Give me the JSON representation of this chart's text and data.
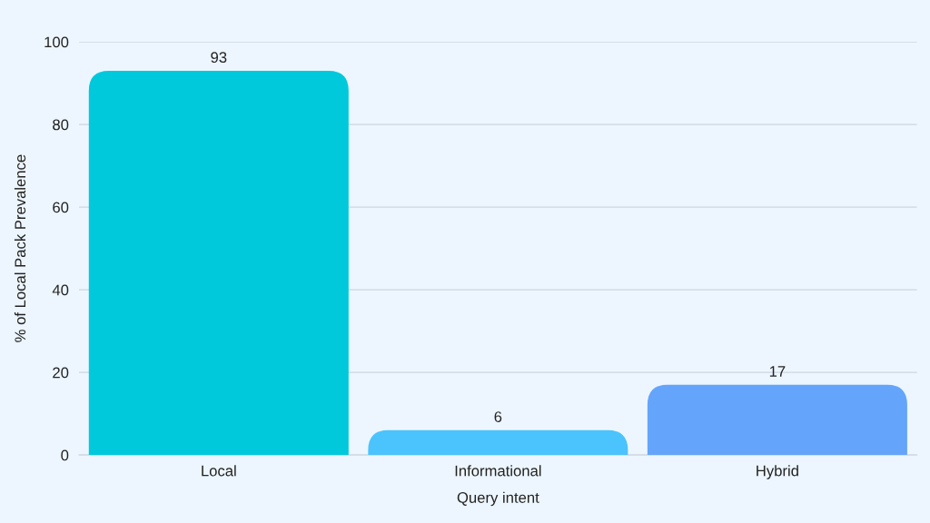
{
  "chart_data": {
    "type": "bar",
    "xlabel": "Query intent",
    "ylabel": "% of Local Pack Prevalence",
    "categories": [
      "Local",
      "Informational",
      "Hybrid"
    ],
    "values": [
      93,
      6,
      17
    ],
    "colors": [
      "#00c9dc",
      "#4bc3fc",
      "#64a5fb"
    ],
    "ylim": [
      0,
      100
    ],
    "yticks": [
      0,
      20,
      40,
      60,
      80,
      100
    ],
    "grid": "y",
    "data_labels": true
  }
}
